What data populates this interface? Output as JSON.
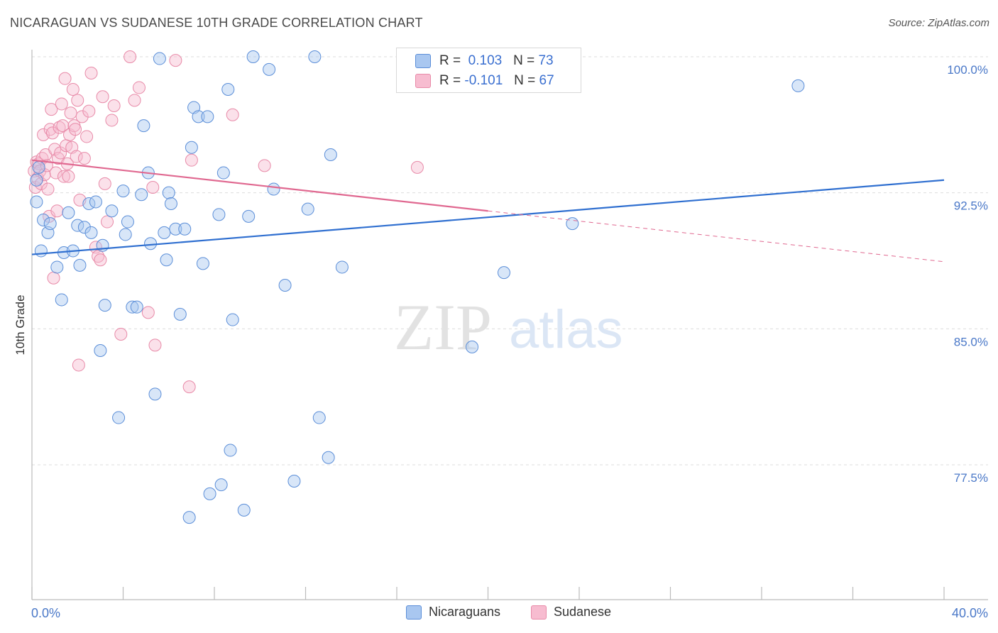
{
  "title": "NICARAGUAN VS SUDANESE 10TH GRADE CORRELATION CHART",
  "source": "Source: ZipAtlas.com",
  "watermark": {
    "zip": "ZIP",
    "atlas": "atlas"
  },
  "legend": {
    "r_label": "R =",
    "n_label": "N =",
    "nicaraguans": {
      "r": "0.103",
      "n": "73"
    },
    "sudanese": {
      "r": "-0.101",
      "n": "67"
    }
  },
  "bottom_legend": {
    "nicaraguans": "Nicaraguans",
    "sudanese": "Sudanese"
  },
  "colors": {
    "nicaraguans_fill": "#a9c7f0",
    "nicaraguans_stroke": "#5b8ed8",
    "nicaraguans_line": "#2f6fd0",
    "sudanese_fill": "#f7bcd0",
    "sudanese_stroke": "#e88aa8",
    "sudanese_line": "#e06890",
    "tick_text": "#4a78c8",
    "grid": "#dddddd"
  },
  "chart_data": {
    "type": "scatter",
    "title": "NICARAGUAN VS SUDANESE 10TH GRADE CORRELATION CHART",
    "xlabel": "",
    "ylabel": "10th Grade",
    "xlim": [
      0,
      40
    ],
    "ylim": [
      70.5,
      101.5
    ],
    "x_tick_labels": [
      "0.0%",
      "40.0%"
    ],
    "y_ticks": [
      100.0,
      92.5,
      85.0,
      77.5
    ],
    "y_tick_labels": [
      "100.0%",
      "92.5%",
      "85.0%",
      "77.5%"
    ],
    "grid": true,
    "legend_placement": "top-center",
    "series": [
      {
        "name": "Nicaraguans",
        "r": 0.103,
        "n": 73,
        "trend": {
          "x": [
            0,
            40
          ],
          "y": [
            89.1,
            93.2
          ]
        },
        "points": [
          [
            0.2,
            92.0
          ],
          [
            0.2,
            93.2
          ],
          [
            0.3,
            93.9
          ],
          [
            0.4,
            89.3
          ],
          [
            0.5,
            91.0
          ],
          [
            0.7,
            90.3
          ],
          [
            0.8,
            90.8
          ],
          [
            1.1,
            88.4
          ],
          [
            1.3,
            86.6
          ],
          [
            1.4,
            89.2
          ],
          [
            1.6,
            91.4
          ],
          [
            1.8,
            89.3
          ],
          [
            2.0,
            90.7
          ],
          [
            2.1,
            88.5
          ],
          [
            2.3,
            90.6
          ],
          [
            2.5,
            91.9
          ],
          [
            2.6,
            90.3
          ],
          [
            2.8,
            92.0
          ],
          [
            3.0,
            83.8
          ],
          [
            3.1,
            89.6
          ],
          [
            3.2,
            86.3
          ],
          [
            3.5,
            91.5
          ],
          [
            3.8,
            80.1
          ],
          [
            4.0,
            92.6
          ],
          [
            4.1,
            90.2
          ],
          [
            4.2,
            90.9
          ],
          [
            4.4,
            86.2
          ],
          [
            4.6,
            86.2
          ],
          [
            4.8,
            92.4
          ],
          [
            4.9,
            96.2
          ],
          [
            5.1,
            93.6
          ],
          [
            5.2,
            89.7
          ],
          [
            5.4,
            81.4
          ],
          [
            5.6,
            99.9
          ],
          [
            5.8,
            90.3
          ],
          [
            5.9,
            88.8
          ],
          [
            6.0,
            92.5
          ],
          [
            6.1,
            91.9
          ],
          [
            6.3,
            90.5
          ],
          [
            6.5,
            85.8
          ],
          [
            6.7,
            90.5
          ],
          [
            6.9,
            74.6
          ],
          [
            7.0,
            95.0
          ],
          [
            7.1,
            97.2
          ],
          [
            7.3,
            96.7
          ],
          [
            7.5,
            88.6
          ],
          [
            7.7,
            96.7
          ],
          [
            7.8,
            75.9
          ],
          [
            8.2,
            91.3
          ],
          [
            8.3,
            76.4
          ],
          [
            8.4,
            93.6
          ],
          [
            8.6,
            98.2
          ],
          [
            8.7,
            78.3
          ],
          [
            8.8,
            85.5
          ],
          [
            9.3,
            75.0
          ],
          [
            9.5,
            91.2
          ],
          [
            9.7,
            100.0
          ],
          [
            10.4,
            99.3
          ],
          [
            10.6,
            92.7
          ],
          [
            11.1,
            87.4
          ],
          [
            11.5,
            76.6
          ],
          [
            12.1,
            91.6
          ],
          [
            12.4,
            100.0
          ],
          [
            12.6,
            80.1
          ],
          [
            13.0,
            77.9
          ],
          [
            13.1,
            94.6
          ],
          [
            13.6,
            88.4
          ],
          [
            16.9,
            100.0
          ],
          [
            21.7,
            100.0
          ],
          [
            19.3,
            84.0
          ],
          [
            20.7,
            88.1
          ],
          [
            23.7,
            90.8
          ],
          [
            33.6,
            98.4
          ]
        ]
      },
      {
        "name": "Sudanese",
        "r": -0.101,
        "n": 67,
        "trend": {
          "x": [
            0,
            20
          ],
          "y": [
            94.3,
            91.5
          ]
        },
        "trend_dashed": {
          "x": [
            20,
            40
          ],
          "y": [
            91.5,
            88.7
          ]
        },
        "points": [
          [
            0.1,
            93.7
          ],
          [
            0.15,
            92.8
          ],
          [
            0.2,
            94.2
          ],
          [
            0.25,
            93.3
          ],
          [
            0.3,
            94.1
          ],
          [
            0.35,
            93.7
          ],
          [
            0.4,
            93.0
          ],
          [
            0.45,
            94.4
          ],
          [
            0.5,
            95.7
          ],
          [
            0.55,
            93.5
          ],
          [
            0.6,
            94.6
          ],
          [
            0.65,
            94.0
          ],
          [
            0.7,
            92.7
          ],
          [
            0.75,
            91.2
          ],
          [
            0.8,
            96.0
          ],
          [
            0.85,
            97.1
          ],
          [
            0.9,
            95.8
          ],
          [
            0.95,
            87.8
          ],
          [
            1.0,
            94.9
          ],
          [
            1.05,
            93.6
          ],
          [
            1.1,
            91.5
          ],
          [
            1.15,
            94.4
          ],
          [
            1.2,
            96.1
          ],
          [
            1.25,
            94.7
          ],
          [
            1.3,
            97.4
          ],
          [
            1.35,
            96.2
          ],
          [
            1.4,
            93.4
          ],
          [
            1.45,
            98.8
          ],
          [
            1.5,
            95.1
          ],
          [
            1.55,
            94.1
          ],
          [
            1.6,
            93.4
          ],
          [
            1.65,
            95.7
          ],
          [
            1.7,
            96.9
          ],
          [
            1.75,
            95.0
          ],
          [
            1.8,
            98.2
          ],
          [
            1.85,
            96.2
          ],
          [
            1.9,
            96.0
          ],
          [
            1.95,
            94.5
          ],
          [
            2.0,
            97.6
          ],
          [
            2.05,
            83.0
          ],
          [
            2.1,
            92.1
          ],
          [
            2.2,
            96.7
          ],
          [
            2.3,
            94.4
          ],
          [
            2.4,
            95.6
          ],
          [
            2.5,
            97.0
          ],
          [
            2.6,
            99.1
          ],
          [
            2.8,
            89.5
          ],
          [
            2.9,
            89.0
          ],
          [
            3.0,
            88.8
          ],
          [
            3.1,
            97.8
          ],
          [
            3.2,
            93.0
          ],
          [
            3.3,
            90.9
          ],
          [
            3.5,
            96.5
          ],
          [
            3.6,
            97.3
          ],
          [
            3.9,
            84.7
          ],
          [
            4.3,
            100.0
          ],
          [
            4.5,
            97.6
          ],
          [
            4.7,
            98.3
          ],
          [
            5.1,
            85.9
          ],
          [
            5.3,
            92.8
          ],
          [
            5.4,
            84.1
          ],
          [
            6.3,
            99.8
          ],
          [
            6.9,
            81.8
          ],
          [
            7.0,
            94.3
          ],
          [
            8.8,
            96.8
          ],
          [
            10.2,
            94.0
          ],
          [
            16.9,
            93.9
          ]
        ]
      }
    ]
  }
}
